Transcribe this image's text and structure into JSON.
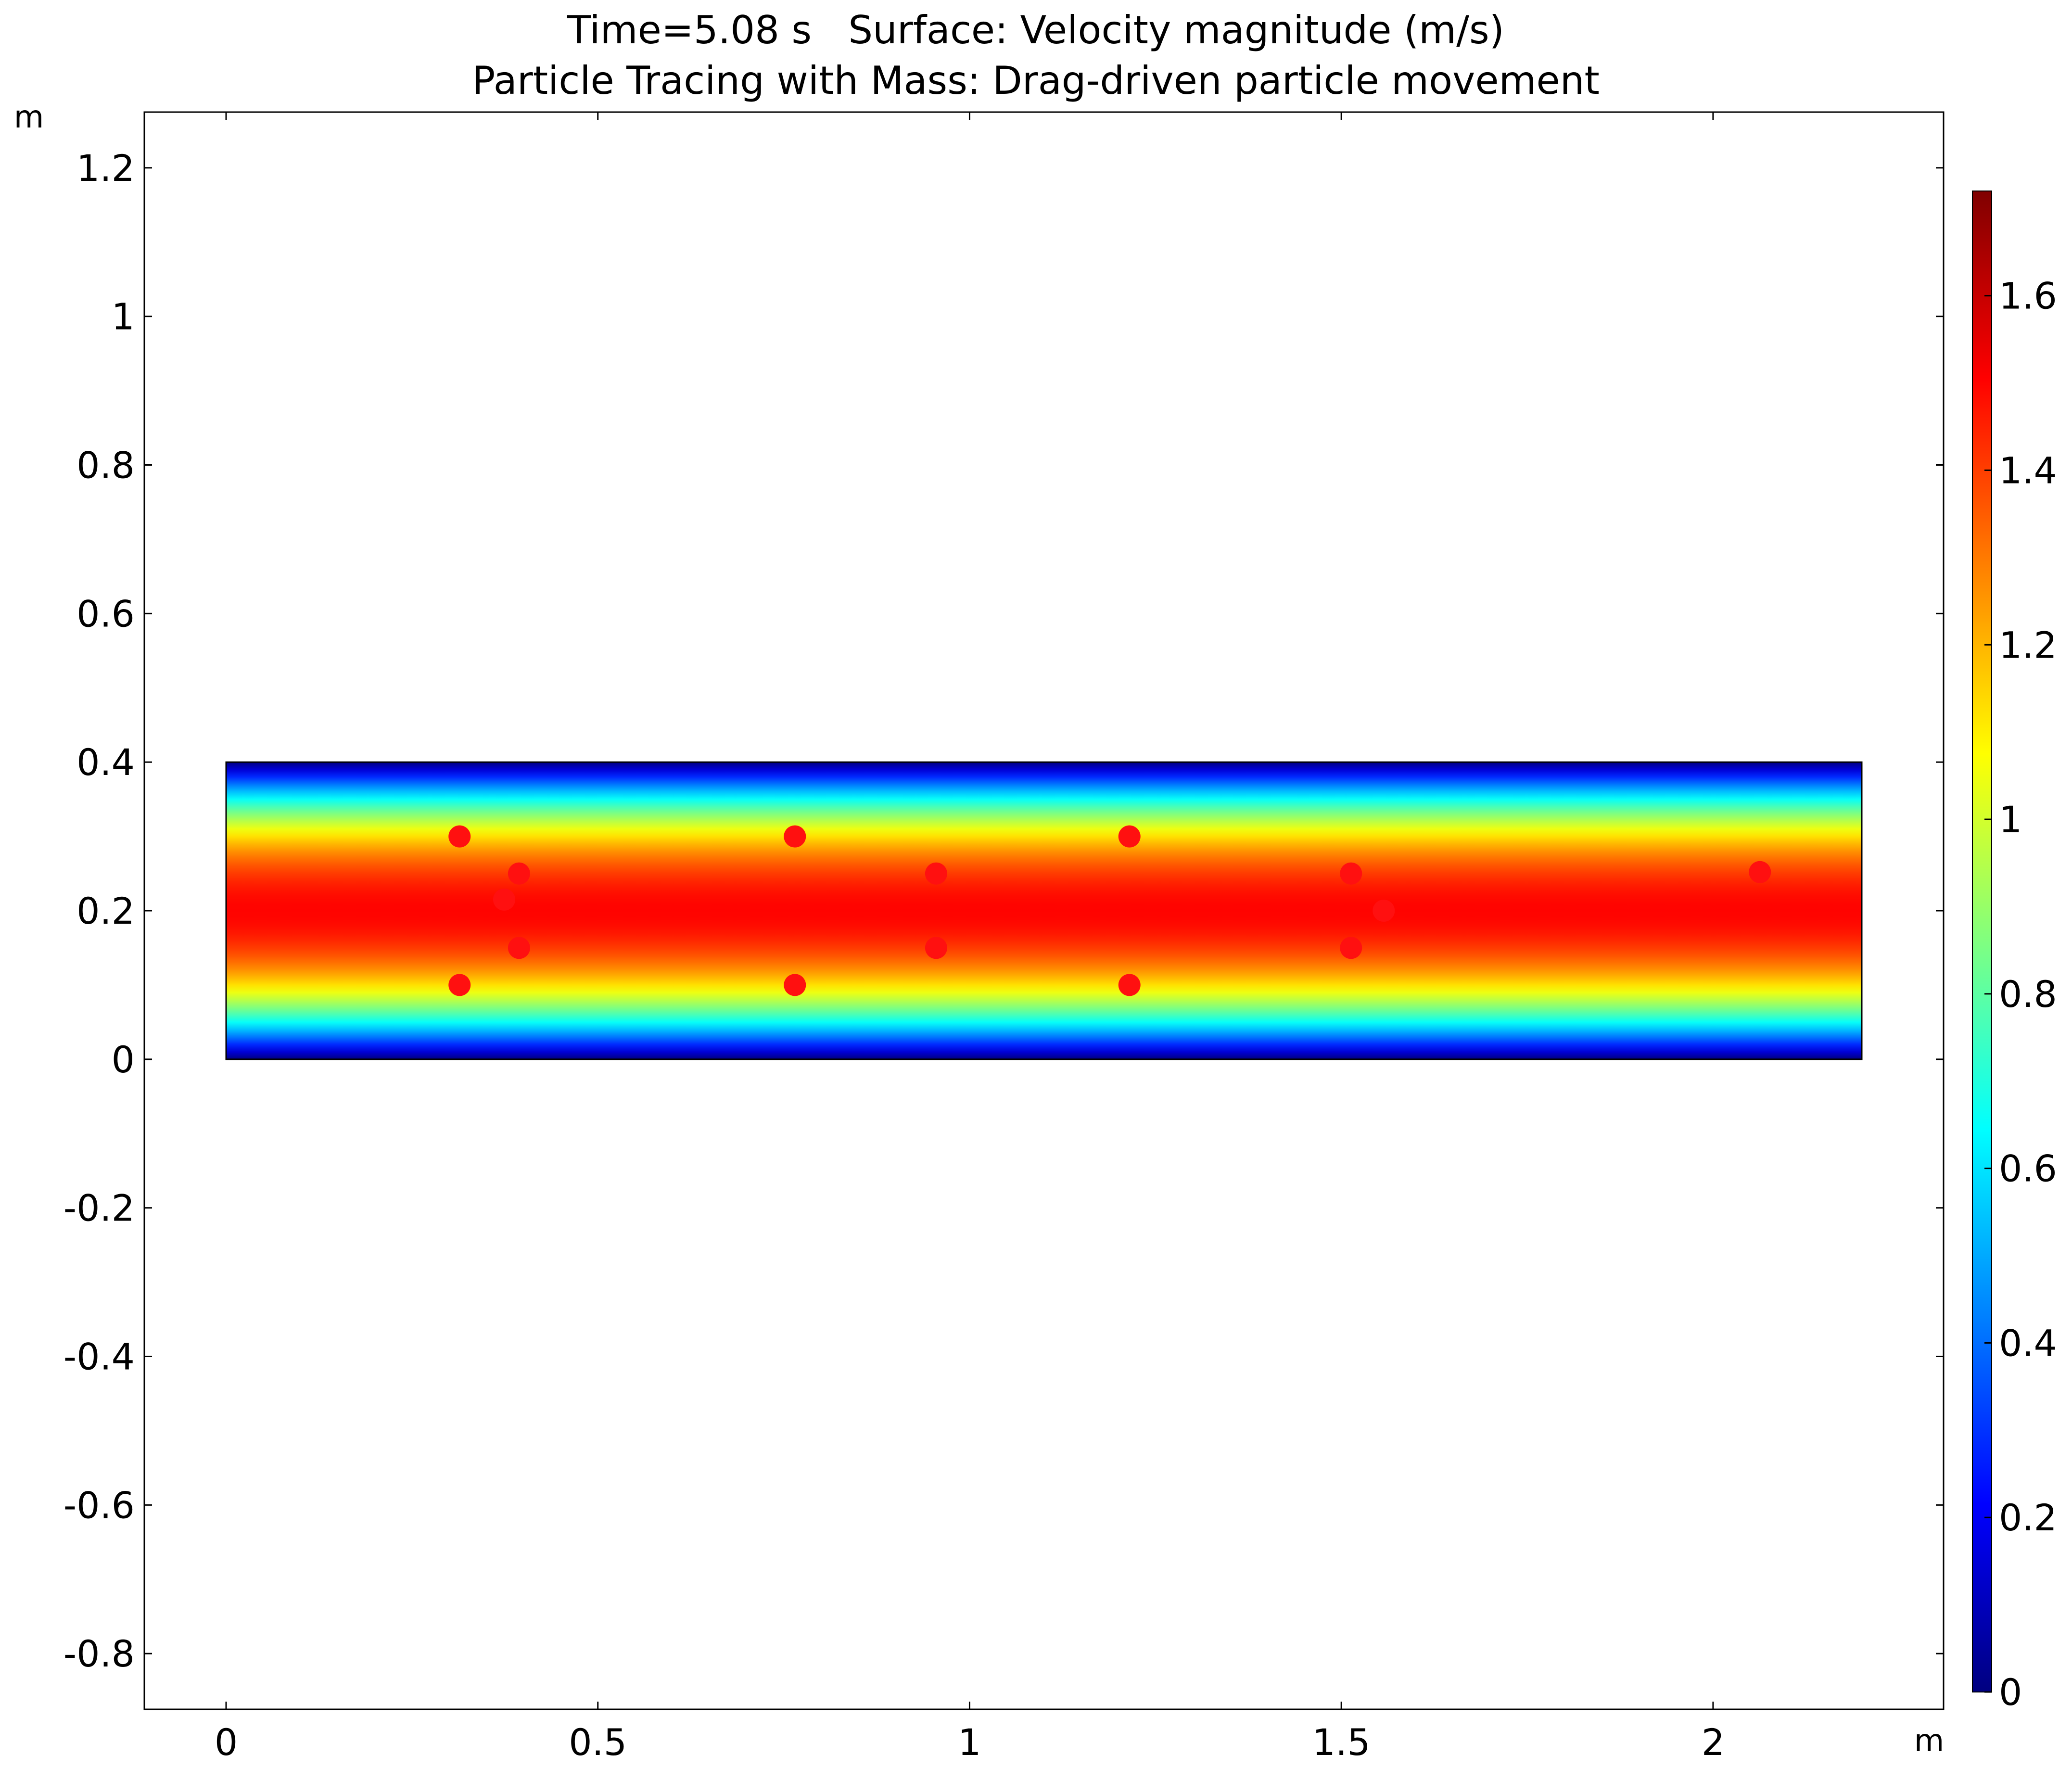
{
  "chart_data": {
    "type": "heatmap",
    "title_line1": "Time=5.08 s   Surface: Velocity magnitude (m/s)",
    "title_line2": "Particle Tracing with Mass: Drag-driven particle movement",
    "x_unit": "m",
    "y_unit": "m",
    "xlim": [
      -0.11,
      2.31
    ],
    "ylim": [
      -0.875,
      1.275
    ],
    "x_ticks": [
      0,
      0.5,
      1,
      1.5,
      2
    ],
    "x_tick_labels": [
      "0",
      "0.5",
      "1",
      "1.5",
      "2"
    ],
    "y_ticks": [
      1.2,
      1,
      0.8,
      0.6,
      0.4,
      0.2,
      0,
      -0.2,
      -0.4,
      -0.6,
      -0.8
    ],
    "y_tick_labels": [
      "1.2",
      "1",
      "0.8",
      "0.6",
      "0.4",
      "0.2",
      "0",
      "-0.2",
      "-0.4",
      "-0.6",
      "-0.8"
    ],
    "domain": {
      "x": [
        0,
        2.2
      ],
      "y": [
        0,
        0.4
      ]
    },
    "field": "parabolic velocity profile, maximum at y = 0.2",
    "field_max": 1.5,
    "colorbar": {
      "colormap": "rainbow (dark blue to dark red)",
      "range": [
        0,
        1.72
      ],
      "ticks": [
        0,
        0.2,
        0.4,
        0.6,
        0.8,
        1,
        1.2,
        1.4,
        1.6
      ],
      "tick_labels": [
        "0",
        "0.2",
        "0.4",
        "0.6",
        "0.8",
        "1",
        "1.2",
        "1.4",
        "1.6"
      ]
    },
    "particles": {
      "color": "#ff1010",
      "points": [
        {
          "x": 0.314,
          "y": 0.3
        },
        {
          "x": 0.314,
          "y": 0.1
        },
        {
          "x": 0.394,
          "y": 0.25
        },
        {
          "x": 0.394,
          "y": 0.15
        },
        {
          "x": 0.374,
          "y": 0.215
        },
        {
          "x": 0.765,
          "y": 0.3
        },
        {
          "x": 0.765,
          "y": 0.1
        },
        {
          "x": 0.955,
          "y": 0.25
        },
        {
          "x": 0.955,
          "y": 0.15
        },
        {
          "x": 1.215,
          "y": 0.3
        },
        {
          "x": 1.215,
          "y": 0.1
        },
        {
          "x": 1.513,
          "y": 0.25
        },
        {
          "x": 1.513,
          "y": 0.15
        },
        {
          "x": 1.557,
          "y": 0.2
        },
        {
          "x": 2.063,
          "y": 0.252
        }
      ]
    }
  }
}
